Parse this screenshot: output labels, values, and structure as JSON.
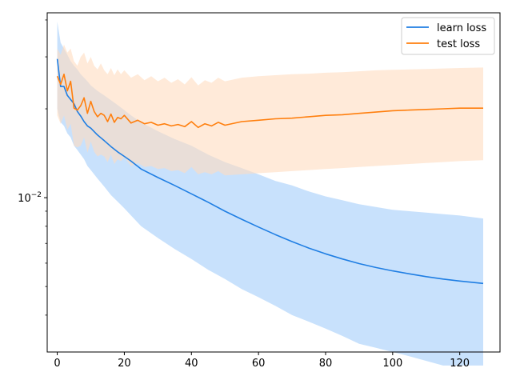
{
  "chart_data": {
    "type": "line",
    "title": "",
    "xlabel": "",
    "ylabel": "",
    "xlim": [
      -3,
      132
    ],
    "ylim": [
      0.003,
      0.0423
    ],
    "yscale": "log",
    "grid": false,
    "legend_position": "top-right",
    "x_ticks": [
      0,
      20,
      40,
      60,
      80,
      100,
      120
    ],
    "x_tick_labels": [
      "0",
      "20",
      "40",
      "60",
      "80",
      "100",
      "120"
    ],
    "y_major_ticks": [
      0.01
    ],
    "y_major_tick_labels": [
      "10",
      "−2"
    ],
    "y_minor_ticks": [
      0.004,
      0.005,
      0.006,
      0.007,
      0.008,
      0.009,
      0.02,
      0.03,
      0.04
    ],
    "series": [
      {
        "name": "learn loss",
        "color": "#1f7ee3",
        "band_color": "#aad1fa",
        "x": [
          0,
          1,
          2,
          3,
          4,
          5,
          6,
          7,
          8,
          9,
          10,
          12,
          14,
          16,
          18,
          20,
          22,
          25,
          30,
          35,
          40,
          45,
          50,
          55,
          60,
          65,
          70,
          75,
          80,
          85,
          90,
          95,
          100,
          105,
          110,
          115,
          120,
          127
        ],
        "values": [
          0.0295,
          0.0238,
          0.0238,
          0.0222,
          0.0215,
          0.0208,
          0.0196,
          0.0189,
          0.0181,
          0.0175,
          0.0172,
          0.0163,
          0.0156,
          0.0149,
          0.0143,
          0.0138,
          0.0133,
          0.0125,
          0.0117,
          0.011,
          0.0103,
          0.00965,
          0.009,
          0.00845,
          0.00795,
          0.0075,
          0.0071,
          0.00675,
          0.00645,
          0.0062,
          0.00598,
          0.0058,
          0.00565,
          0.00552,
          0.0054,
          0.0053,
          0.00522,
          0.00512
        ],
        "upper": [
          0.0395,
          0.0335,
          0.032,
          0.0305,
          0.029,
          0.028,
          0.0272,
          0.0262,
          0.0255,
          0.0248,
          0.024,
          0.023,
          0.0222,
          0.0214,
          0.0206,
          0.0198,
          0.019,
          0.018,
          0.0168,
          0.0158,
          0.015,
          0.014,
          0.0132,
          0.0126,
          0.012,
          0.0114,
          0.011,
          0.0105,
          0.0101,
          0.0098,
          0.0095,
          0.0093,
          0.0091,
          0.009,
          0.0089,
          0.0088,
          0.0087,
          0.0085
        ],
        "lower": [
          0.02,
          0.018,
          0.0175,
          0.0165,
          0.016,
          0.015,
          0.0145,
          0.014,
          0.0135,
          0.0128,
          0.0124,
          0.0116,
          0.0109,
          0.0102,
          0.0097,
          0.0092,
          0.0087,
          0.008,
          0.0073,
          0.0067,
          0.0062,
          0.0057,
          0.0053,
          0.0049,
          0.0046,
          0.0043,
          0.004,
          0.0038,
          0.0036,
          0.0034,
          0.0032,
          0.0031,
          0.003,
          0.0029,
          0.0028,
          0.0027,
          0.0027,
          0.0027
        ]
      },
      {
        "name": "test loss",
        "color": "#ff7f0e",
        "band_color": "#ffdcc0",
        "x": [
          0,
          1,
          2,
          3,
          4,
          5,
          6,
          7,
          8,
          9,
          10,
          11,
          12,
          13,
          14,
          15,
          16,
          17,
          18,
          19,
          20,
          22,
          24,
          26,
          28,
          30,
          32,
          34,
          36,
          38,
          40,
          42,
          44,
          46,
          48,
          50,
          55,
          60,
          65,
          70,
          75,
          80,
          85,
          90,
          95,
          100,
          105,
          110,
          115,
          120,
          127
        ],
        "values": [
          0.0258,
          0.0242,
          0.0262,
          0.023,
          0.0248,
          0.0201,
          0.0198,
          0.0205,
          0.0218,
          0.0193,
          0.0212,
          0.0196,
          0.0188,
          0.0193,
          0.019,
          0.0181,
          0.0192,
          0.018,
          0.0187,
          0.0185,
          0.019,
          0.0179,
          0.0183,
          0.0178,
          0.018,
          0.0176,
          0.0178,
          0.0175,
          0.0177,
          0.0174,
          0.0181,
          0.0173,
          0.0178,
          0.0175,
          0.018,
          0.0176,
          0.0181,
          0.0183,
          0.0185,
          0.0186,
          0.0188,
          0.019,
          0.0191,
          0.0193,
          0.0195,
          0.0197,
          0.0198,
          0.0199,
          0.02,
          0.0201,
          0.0201
        ],
        "upper": [
          0.032,
          0.0305,
          0.033,
          0.031,
          0.032,
          0.029,
          0.028,
          0.03,
          0.031,
          0.0285,
          0.03,
          0.028,
          0.0272,
          0.0285,
          0.027,
          0.0262,
          0.0275,
          0.026,
          0.0272,
          0.0262,
          0.027,
          0.0255,
          0.0262,
          0.025,
          0.0258,
          0.0248,
          0.0255,
          0.0245,
          0.0252,
          0.0242,
          0.0256,
          0.024,
          0.025,
          0.0245,
          0.0255,
          0.0248,
          0.0255,
          0.0258,
          0.026,
          0.0262,
          0.0263,
          0.0265,
          0.0266,
          0.0268,
          0.027,
          0.0271,
          0.0272,
          0.0273,
          0.0274,
          0.0275,
          0.0276
        ],
        "lower": [
          0.019,
          0.0178,
          0.019,
          0.017,
          0.0178,
          0.015,
          0.0148,
          0.015,
          0.016,
          0.0142,
          0.0155,
          0.0143,
          0.0138,
          0.014,
          0.0138,
          0.0132,
          0.014,
          0.013,
          0.0135,
          0.0133,
          0.0137,
          0.0128,
          0.0131,
          0.0127,
          0.0128,
          0.0125,
          0.0126,
          0.0123,
          0.0124,
          0.0121,
          0.0127,
          0.012,
          0.0122,
          0.012,
          0.0123,
          0.0119,
          0.012,
          0.0121,
          0.0122,
          0.0123,
          0.0124,
          0.0125,
          0.0126,
          0.0127,
          0.0128,
          0.0129,
          0.013,
          0.0131,
          0.0132,
          0.0133,
          0.0134
        ]
      }
    ]
  }
}
